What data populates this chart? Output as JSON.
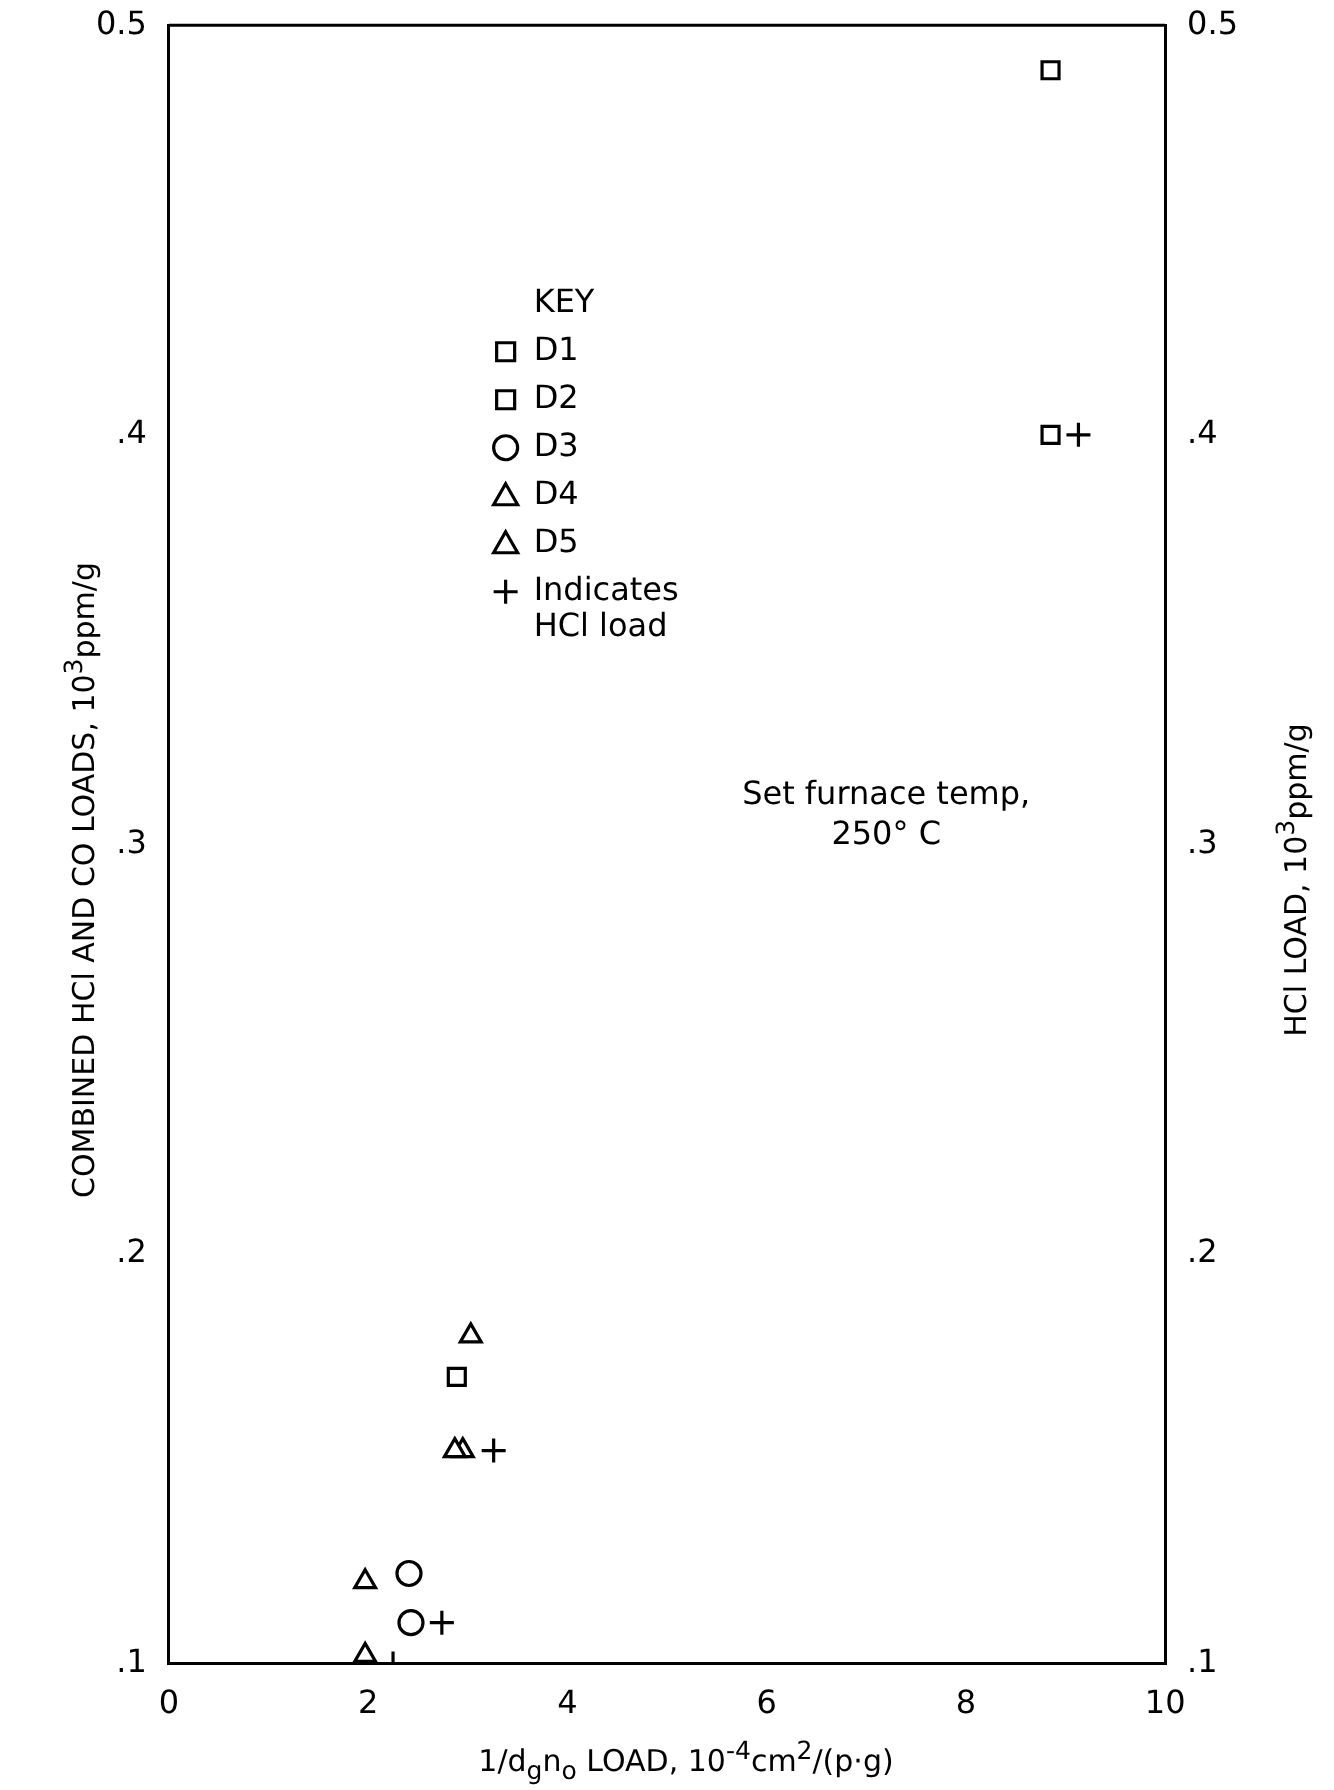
{
  "chart_data": {
    "type": "scatter",
    "xlabel": "1/d$_{g}$n$_{o}$ LOAD, 10$^{-4}$cm$^{2}$/(p·g)",
    "ylabel": "COMBINED HCl AND CO LOADS, 10$^{3}$ppm/g",
    "y2label": "HCl LOAD, 10$^{3}$ppm/g",
    "legend_title": "KEY",
    "legend": "top left",
    "grid": false,
    "annotations": [
      "Set furnace temp,\n250° C"
    ],
    "xlim": [
      0,
      10
    ],
    "xticks": [
      0,
      2,
      4,
      6,
      8,
      10
    ],
    "ylim": [
      0.1,
      0.5
    ],
    "yticks": [
      {
        "value": 0.1,
        "label": ".1"
      },
      {
        "value": 0.2,
        "label": ".2"
      },
      {
        "value": 0.3,
        "label": ".3"
      },
      {
        "value": 0.4,
        "label": ".4"
      },
      {
        "value": 0.5,
        "label": "0.5"
      }
    ],
    "y2lim": [
      0.1,
      0.5
    ],
    "y2ticks": [
      {
        "value": 0.1,
        "label": ".1"
      },
      {
        "value": 0.2,
        "label": ".2"
      },
      {
        "value": 0.3,
        "label": ".3"
      },
      {
        "value": 0.4,
        "label": ".4"
      },
      {
        "value": 0.5,
        "label": "0.5"
      }
    ],
    "series": [
      {
        "name": "D1",
        "color": "#000000",
        "marker": "square",
        "x": [
          8.85,
          8.85
        ],
        "values": [
          0.489,
          0.4
        ]
      },
      {
        "name": "D2",
        "color": "#000000",
        "marker": "square",
        "x": [
          2.89
        ],
        "values": [
          0.17
        ]
      },
      {
        "name": "D3",
        "color": "#000000",
        "marker": "circle",
        "x": [
          2.41,
          2.43
        ],
        "values": [
          0.122,
          0.11
        ]
      },
      {
        "name": "D4",
        "color": "#000000",
        "marker": "triangle",
        "x": [
          2.87,
          1.97,
          1.97
        ],
        "values": [
          0.152,
          0.12,
          0.102
        ]
      },
      {
        "name": "D5",
        "color": "#000000",
        "marker": "triangle",
        "x": [
          3.03,
          2.95
        ],
        "values": [
          0.18,
          0.152
        ]
      },
      {
        "name": "Indicates HCl load",
        "color": "#000000",
        "marker": "cross",
        "x": [
          9.13,
          3.26,
          2.74,
          2.25
        ],
        "values": [
          0.4,
          0.152,
          0.11,
          0.1
        ]
      }
    ]
  }
}
